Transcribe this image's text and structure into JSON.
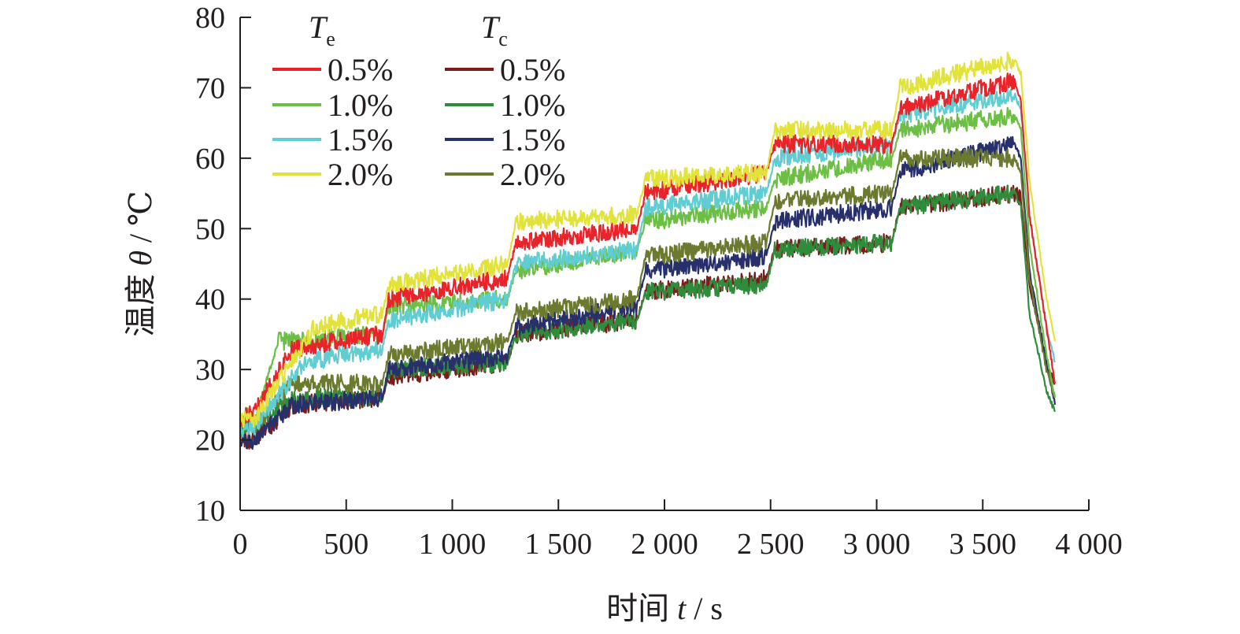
{
  "chart_data": {
    "type": "line",
    "xlabel": {
      "prefix": "时间 ",
      "symbol": "t",
      "unit": " / s"
    },
    "ylabel": {
      "prefix": "温度 ",
      "symbol": "θ",
      "unit": " / ℃"
    },
    "xlim": [
      0,
      4000
    ],
    "ylim": [
      10,
      80
    ],
    "x_ticks": [
      0,
      500,
      1000,
      1500,
      2000,
      2500,
      3000,
      3500,
      4000
    ],
    "x_tick_labels": [
      "0",
      "500",
      "1 000",
      "1 500",
      "2 000",
      "2 500",
      "3 000",
      "3 500",
      "4 000"
    ],
    "y_ticks": [
      10,
      20,
      30,
      40,
      50,
      60,
      70,
      80
    ],
    "y_tick_labels": [
      "10",
      "20",
      "30",
      "40",
      "50",
      "60",
      "70",
      "80"
    ],
    "grid": false,
    "legend_position": "top-left",
    "legend_groups": [
      {
        "symbol": "T",
        "sub": "e"
      },
      {
        "symbol": "T",
        "sub": "c"
      }
    ],
    "series": [
      {
        "name": "0.5%",
        "group": 0,
        "color": "#e8232a",
        "points": [
          [
            0,
            23
          ],
          [
            70,
            24
          ],
          [
            250,
            33
          ],
          [
            670,
            35
          ],
          [
            700,
            40
          ],
          [
            1260,
            43
          ],
          [
            1300,
            48
          ],
          [
            1870,
            50
          ],
          [
            1910,
            55
          ],
          [
            2480,
            58
          ],
          [
            2520,
            62
          ],
          [
            3070,
            62
          ],
          [
            3110,
            67
          ],
          [
            3650,
            71
          ],
          [
            3680,
            68
          ],
          [
            3720,
            52
          ],
          [
            3800,
            36
          ],
          [
            3840,
            28
          ]
        ]
      },
      {
        "name": "1.0%",
        "group": 0,
        "color": "#6cbf44",
        "points": [
          [
            0,
            24
          ],
          [
            70,
            23
          ],
          [
            180,
            34
          ],
          [
            670,
            35
          ],
          [
            700,
            39
          ],
          [
            1260,
            40
          ],
          [
            1300,
            44
          ],
          [
            1870,
            47
          ],
          [
            1910,
            51
          ],
          [
            2480,
            53
          ],
          [
            2520,
            57
          ],
          [
            3070,
            60
          ],
          [
            3110,
            64
          ],
          [
            3650,
            66
          ],
          [
            3680,
            64
          ],
          [
            3720,
            48
          ],
          [
            3800,
            32
          ],
          [
            3840,
            26
          ]
        ]
      },
      {
        "name": "1.5%",
        "group": 0,
        "color": "#5fcdd1",
        "points": [
          [
            0,
            21
          ],
          [
            70,
            22
          ],
          [
            300,
            31
          ],
          [
            670,
            33
          ],
          [
            700,
            37
          ],
          [
            1260,
            40
          ],
          [
            1300,
            45
          ],
          [
            1870,
            47
          ],
          [
            1910,
            53
          ],
          [
            2480,
            55
          ],
          [
            2520,
            60
          ],
          [
            3070,
            62
          ],
          [
            3110,
            66
          ],
          [
            3650,
            69
          ],
          [
            3680,
            67
          ],
          [
            3720,
            52
          ],
          [
            3800,
            36
          ],
          [
            3840,
            31
          ]
        ]
      },
      {
        "name": "2.0%",
        "group": 0,
        "color": "#e2e33a",
        "points": [
          [
            0,
            23
          ],
          [
            70,
            23
          ],
          [
            350,
            36
          ],
          [
            670,
            38
          ],
          [
            700,
            42
          ],
          [
            1260,
            45
          ],
          [
            1300,
            51
          ],
          [
            1870,
            52
          ],
          [
            1910,
            57
          ],
          [
            2480,
            58
          ],
          [
            2520,
            64
          ],
          [
            3070,
            64
          ],
          [
            3110,
            70
          ],
          [
            3650,
            74
          ],
          [
            3680,
            72
          ],
          [
            3720,
            57
          ],
          [
            3800,
            40
          ],
          [
            3840,
            34
          ]
        ]
      },
      {
        "name": "0.5%",
        "group": 1,
        "color": "#7a1d1c",
        "points": [
          [
            0,
            20
          ],
          [
            70,
            20
          ],
          [
            250,
            25
          ],
          [
            670,
            26
          ],
          [
            700,
            29
          ],
          [
            1260,
            31
          ],
          [
            1300,
            35
          ],
          [
            1870,
            37
          ],
          [
            1910,
            41
          ],
          [
            2480,
            43
          ],
          [
            2520,
            47
          ],
          [
            3070,
            48
          ],
          [
            3110,
            53
          ],
          [
            3650,
            55
          ],
          [
            3680,
            54
          ],
          [
            3720,
            42
          ],
          [
            3800,
            31
          ],
          [
            3840,
            28
          ]
        ]
      },
      {
        "name": "1.0%",
        "group": 1,
        "color": "#2f8c3a",
        "points": [
          [
            0,
            22
          ],
          [
            70,
            22
          ],
          [
            250,
            26
          ],
          [
            670,
            26
          ],
          [
            700,
            30
          ],
          [
            1260,
            31
          ],
          [
            1300,
            35
          ],
          [
            1870,
            37
          ],
          [
            1910,
            41
          ],
          [
            2480,
            42
          ],
          [
            2520,
            47
          ],
          [
            3070,
            48
          ],
          [
            3110,
            53
          ],
          [
            3650,
            55
          ],
          [
            3680,
            53
          ],
          [
            3720,
            38
          ],
          [
            3800,
            27
          ],
          [
            3840,
            24
          ]
        ]
      },
      {
        "name": "1.5%",
        "group": 1,
        "color": "#27306b",
        "points": [
          [
            0,
            20
          ],
          [
            70,
            20
          ],
          [
            250,
            25
          ],
          [
            670,
            26
          ],
          [
            700,
            30
          ],
          [
            1260,
            32
          ],
          [
            1300,
            36
          ],
          [
            1870,
            39
          ],
          [
            1910,
            44
          ],
          [
            2480,
            46
          ],
          [
            2520,
            51
          ],
          [
            3070,
            53
          ],
          [
            3110,
            58
          ],
          [
            3650,
            62
          ],
          [
            3680,
            60
          ],
          [
            3720,
            44
          ],
          [
            3800,
            31
          ],
          [
            3840,
            25
          ]
        ]
      },
      {
        "name": "2.0%",
        "group": 1,
        "color": "#6b7a2e",
        "points": [
          [
            0,
            22
          ],
          [
            70,
            22
          ],
          [
            250,
            28
          ],
          [
            670,
            28
          ],
          [
            700,
            32
          ],
          [
            1260,
            34
          ],
          [
            1300,
            38
          ],
          [
            1870,
            40
          ],
          [
            1910,
            46
          ],
          [
            2480,
            48
          ],
          [
            2520,
            54
          ],
          [
            3070,
            55
          ],
          [
            3110,
            60
          ],
          [
            3650,
            60
          ],
          [
            3680,
            58
          ],
          [
            3720,
            43
          ],
          [
            3800,
            30
          ],
          [
            3840,
            26
          ]
        ]
      }
    ]
  }
}
